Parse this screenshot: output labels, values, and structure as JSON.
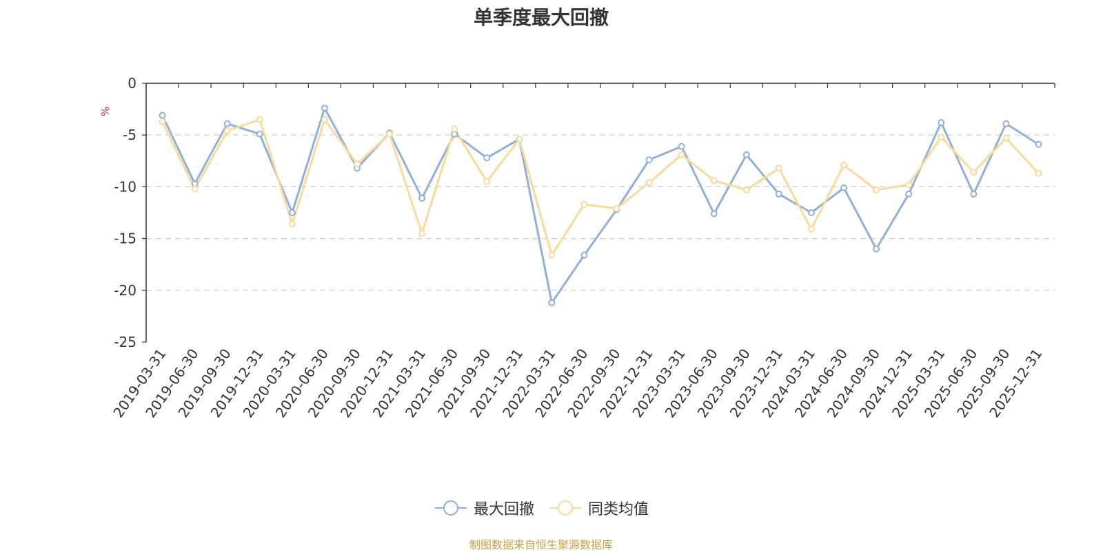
{
  "colors": {
    "series1": "#8eb0dc",
    "series2": "#fcd997",
    "source": "#c8a040",
    "unit": "#e02020"
  },
  "chart_data": {
    "type": "line",
    "title": "单季度最大回撤",
    "ylabel": "%",
    "ylim": [
      -25,
      0
    ],
    "yticks": [
      "0",
      "-5",
      "-10",
      "-15",
      "-20",
      "-25"
    ],
    "grid": true,
    "legend_position": "bottom",
    "categories": [
      "2019-03-31",
      "2019-06-30",
      "2019-09-30",
      "2019-12-31",
      "2020-03-31",
      "2020-06-30",
      "2020-09-30",
      "2020-12-31",
      "2021-03-31",
      "2021-06-30",
      "2021-09-30",
      "2021-12-31",
      "2022-03-31",
      "2022-06-30",
      "2022-09-30",
      "2022-12-31",
      "2023-03-31",
      "2023-06-30",
      "2023-09-30",
      "2023-12-31",
      "2024-03-31",
      "2024-06-30",
      "2024-09-30",
      "2024-12-31",
      "2025-03-31",
      "2025-06-30",
      "2025-09-30",
      "2025-12-31"
    ],
    "series": [
      {
        "name": "最大回撤",
        "values": [
          -3.1,
          -9.7,
          -3.9,
          -4.9,
          -12.5,
          -2.4,
          -8.2,
          -4.8,
          -11.1,
          -4.9,
          -7.2,
          -5.4,
          -21.2,
          -16.6,
          -12.2,
          -7.4,
          -6.1,
          -12.6,
          -6.9,
          -10.7,
          -12.5,
          -10.1,
          -16.0,
          -10.7,
          -3.8,
          -10.7,
          -3.9,
          -5.9
        ]
      },
      {
        "name": "同类均值",
        "values": [
          -3.7,
          -10.2,
          -4.6,
          -3.5,
          -13.6,
          -3.5,
          -7.8,
          -4.9,
          -14.5,
          -4.4,
          -9.5,
          -5.4,
          -16.6,
          -11.7,
          -12.1,
          -9.6,
          -6.9,
          -9.4,
          -10.3,
          -8.2,
          -14.1,
          -7.9,
          -10.3,
          -9.8,
          -5.2,
          -8.6,
          -5.3,
          -8.7
        ]
      }
    ]
  },
  "source": "制图数据来自恒生聚源数据库"
}
